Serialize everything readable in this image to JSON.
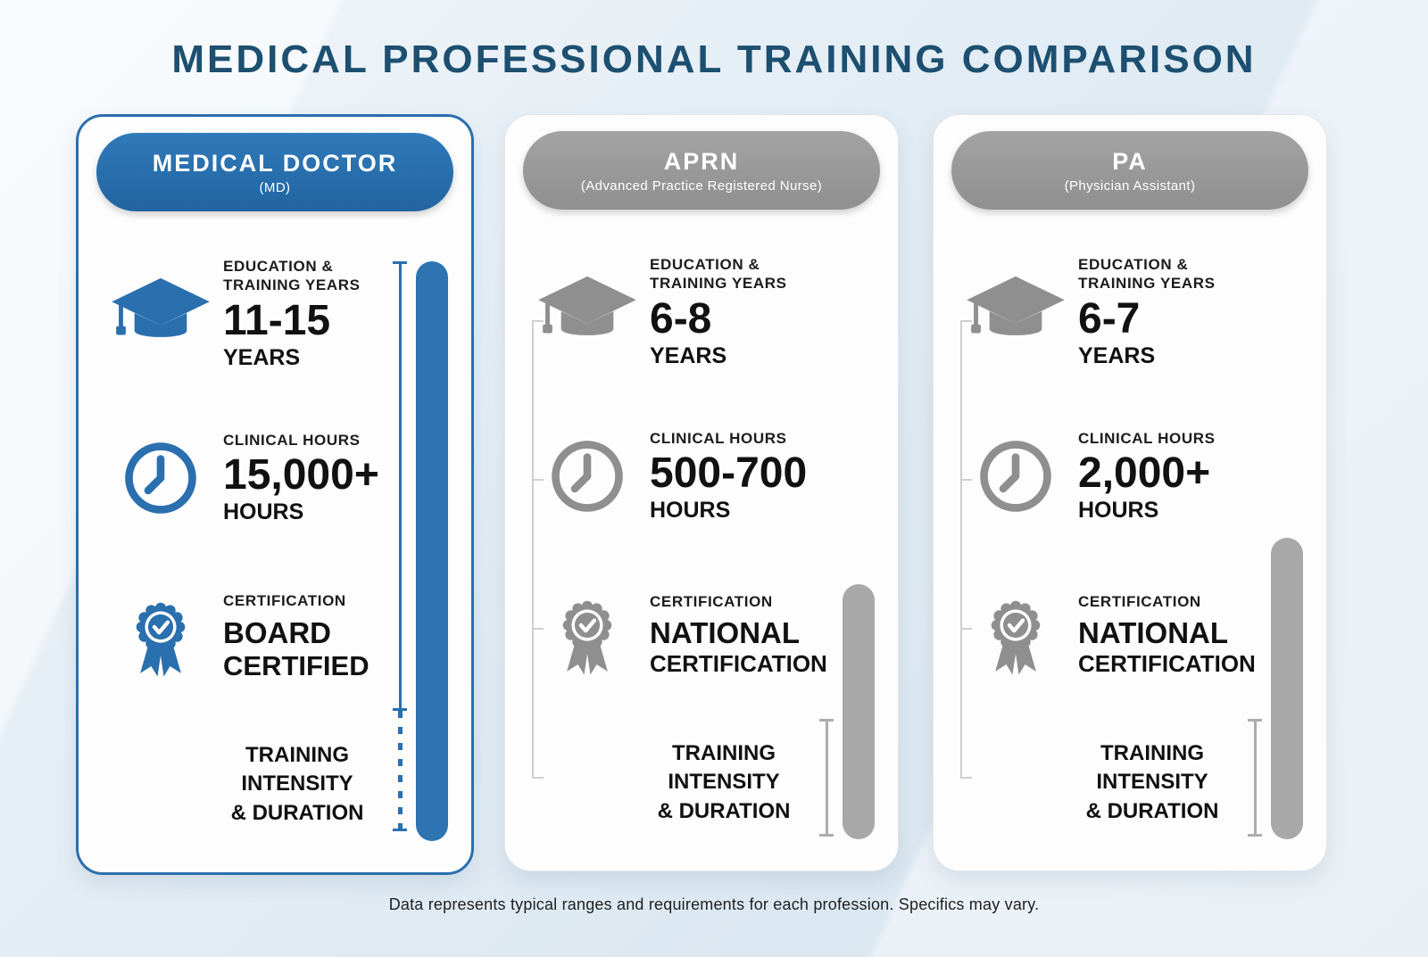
{
  "page": {
    "title": "MEDICAL PROFESSIONAL TRAINING COMPARISON",
    "footnote": "Data represents typical ranges and requirements for each profession. Specifics may vary."
  },
  "colors": {
    "accent_blue": "#2e74b2",
    "title_blue": "#1d4f70",
    "pill_gray": "#9c9c9c",
    "bar_gray": "#a8a8a8",
    "text_dark": "#1c1c1c",
    "background": "#e2ecf4"
  },
  "cards": [
    {
      "title": "MEDICAL DOCTOR",
      "subtitle": "(MD)",
      "theme": "blue",
      "education": {
        "label": "EDUCATION & TRAINING YEARS",
        "value": "11-15",
        "unit": "YEARS",
        "icon": "graduation-cap-icon"
      },
      "clinical": {
        "label": "CLINICAL HOURS",
        "value": "15,000+",
        "unit": "HOURS",
        "icon": "clock-icon"
      },
      "certification": {
        "label": "CERTIFICATION",
        "value": "BOARD",
        "unit": "CERTIFIED",
        "icon": "certificate-ribbon-icon"
      },
      "intensity": {
        "line1": "TRAINING",
        "line2": "INTENSITY",
        "line3": "& DURATION",
        "pct": 100
      }
    },
    {
      "title": "APRN",
      "subtitle": "(Advanced Practice Registered Nurse)",
      "theme": "gray",
      "education": {
        "label": "EDUCATION & TRAINING YEARS",
        "value": "6-8",
        "unit": "YEARS",
        "icon": "graduation-cap-icon"
      },
      "clinical": {
        "label": "CLINICAL HOURS",
        "value": "500-700",
        "unit": "HOURS",
        "icon": "clock-icon"
      },
      "certification": {
        "label": "CERTIFICATION",
        "value": "NATIONAL",
        "unit": "CERTIFICATION",
        "icon": "certificate-ribbon-icon"
      },
      "intensity": {
        "line1": "TRAINING",
        "line2": "INTENSITY",
        "line3": "& DURATION",
        "pct": 44
      }
    },
    {
      "title": "PA",
      "subtitle": "(Physician Assistant)",
      "theme": "gray",
      "education": {
        "label": "EDUCATION & TRAINING YEARS",
        "value": "6-7",
        "unit": "YEARS",
        "icon": "graduation-cap-icon"
      },
      "clinical": {
        "label": "CLINICAL HOURS",
        "value": "2,000+",
        "unit": "HOURS",
        "icon": "clock-icon"
      },
      "certification": {
        "label": "CERTIFICATION",
        "value": "NATIONAL",
        "unit": "CERTIFICATION",
        "icon": "certificate-ribbon-icon"
      },
      "intensity": {
        "line1": "TRAINING",
        "line2": "INTENSITY",
        "line3": "& DURATION",
        "pct": 52
      }
    }
  ]
}
